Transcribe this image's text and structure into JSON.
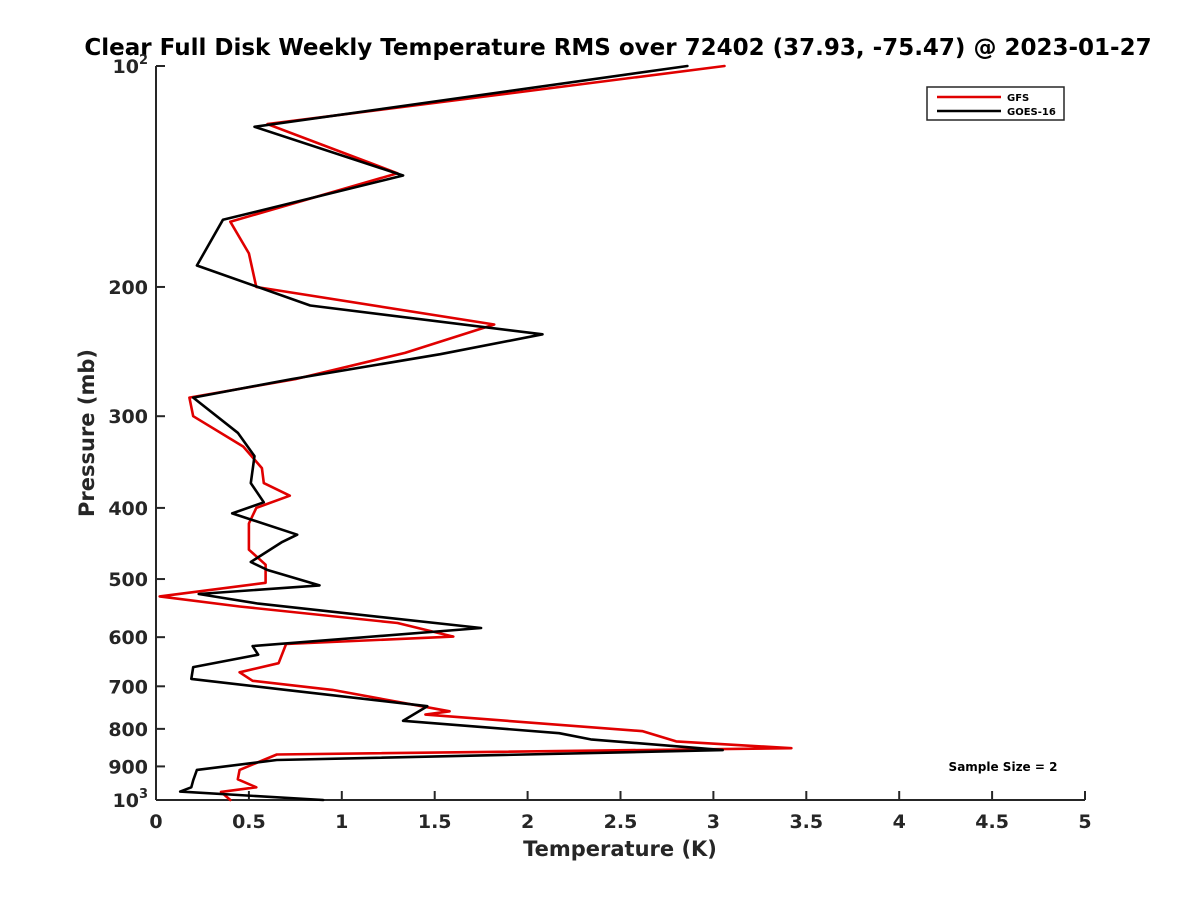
{
  "chart_data": {
    "type": "line",
    "title": "Clear Full Disk Weekly Temperature RMS over 72402 (37.93, -75.47) @ 2023-01-27",
    "xlabel": "Temperature (K)",
    "ylabel": "Pressure (mb)",
    "xlim": [
      0,
      5
    ],
    "ylim": [
      100,
      1000
    ],
    "y_scale": "log",
    "y_reversed": true,
    "grid": false,
    "legend_position": "top-right",
    "x_ticks": [
      "0",
      "0.5",
      "1",
      "1.5",
      "2",
      "2.5",
      "3",
      "3.5",
      "4",
      "4.5",
      "5"
    ],
    "x_tick_values": [
      0,
      0.5,
      1,
      1.5,
      2,
      2.5,
      3,
      3.5,
      4,
      4.5,
      5
    ],
    "y_ticks": [
      {
        "value": 100,
        "base": "10",
        "exp": "2"
      },
      {
        "value": 200,
        "base": "200",
        "exp": ""
      },
      {
        "value": 300,
        "base": "300",
        "exp": ""
      },
      {
        "value": 400,
        "base": "400",
        "exp": ""
      },
      {
        "value": 500,
        "base": "500",
        "exp": ""
      },
      {
        "value": 600,
        "base": "600",
        "exp": ""
      },
      {
        "value": 700,
        "base": "700",
        "exp": ""
      },
      {
        "value": 800,
        "base": "800",
        "exp": ""
      },
      {
        "value": 900,
        "base": "900",
        "exp": ""
      },
      {
        "value": 1000,
        "base": "10",
        "exp": "3"
      }
    ],
    "annotation": "Sample Size = 2",
    "series": [
      {
        "name": "GFS",
        "color": "#e00000",
        "points": [
          [
            3.06,
            100
          ],
          [
            0.6,
            120
          ],
          [
            1.3,
            140
          ],
          [
            0.4,
            163
          ],
          [
            0.5,
            180
          ],
          [
            0.54,
            200
          ],
          [
            1.82,
            225
          ],
          [
            1.34,
            246
          ],
          [
            0.75,
            267
          ],
          [
            0.18,
            283
          ],
          [
            0.2,
            300
          ],
          [
            0.47,
            330
          ],
          [
            0.57,
            353
          ],
          [
            0.58,
            370
          ],
          [
            0.72,
            385
          ],
          [
            0.54,
            400
          ],
          [
            0.5,
            420
          ],
          [
            0.5,
            456
          ],
          [
            0.59,
            478
          ],
          [
            0.59,
            506
          ],
          [
            0.02,
            528
          ],
          [
            0.45,
            545
          ],
          [
            1.3,
            574
          ],
          [
            1.6,
            599
          ],
          [
            0.7,
            613
          ],
          [
            0.66,
            651
          ],
          [
            0.45,
            670
          ],
          [
            0.52,
            688
          ],
          [
            0.95,
            708
          ],
          [
            1.58,
            757
          ],
          [
            1.45,
            765
          ],
          [
            2.62,
            806
          ],
          [
            2.8,
            832
          ],
          [
            3.42,
            850
          ],
          [
            0.65,
            867
          ],
          [
            0.45,
            910
          ],
          [
            0.44,
            937
          ],
          [
            0.54,
            961
          ],
          [
            0.35,
            975
          ],
          [
            0.4,
            1000
          ]
        ]
      },
      {
        "name": "GOES-16",
        "color": "#000000",
        "points": [
          [
            2.86,
            100
          ],
          [
            0.53,
            121
          ],
          [
            1.33,
            141
          ],
          [
            0.36,
            162
          ],
          [
            0.22,
            187
          ],
          [
            0.83,
            212
          ],
          [
            2.08,
            232
          ],
          [
            1.53,
            247
          ],
          [
            0.73,
            267
          ],
          [
            0.2,
            283
          ],
          [
            0.44,
            316
          ],
          [
            0.53,
            340
          ],
          [
            0.51,
            370
          ],
          [
            0.58,
            393
          ],
          [
            0.41,
            407
          ],
          [
            0.76,
            435
          ],
          [
            0.68,
            445
          ],
          [
            0.51,
            474
          ],
          [
            0.6,
            486
          ],
          [
            0.88,
            510
          ],
          [
            0.23,
            524
          ],
          [
            0.55,
            540
          ],
          [
            1.75,
            583
          ],
          [
            0.52,
            617
          ],
          [
            0.55,
            634
          ],
          [
            0.2,
            659
          ],
          [
            0.19,
            684
          ],
          [
            0.7,
            708
          ],
          [
            1.46,
            745
          ],
          [
            1.33,
            780
          ],
          [
            2.17,
            811
          ],
          [
            2.34,
            827
          ],
          [
            3.05,
            855
          ],
          [
            0.65,
            882
          ],
          [
            0.22,
            910
          ],
          [
            0.2,
            940
          ],
          [
            0.19,
            961
          ],
          [
            0.13,
            974
          ],
          [
            0.9,
            1000
          ]
        ]
      }
    ]
  }
}
